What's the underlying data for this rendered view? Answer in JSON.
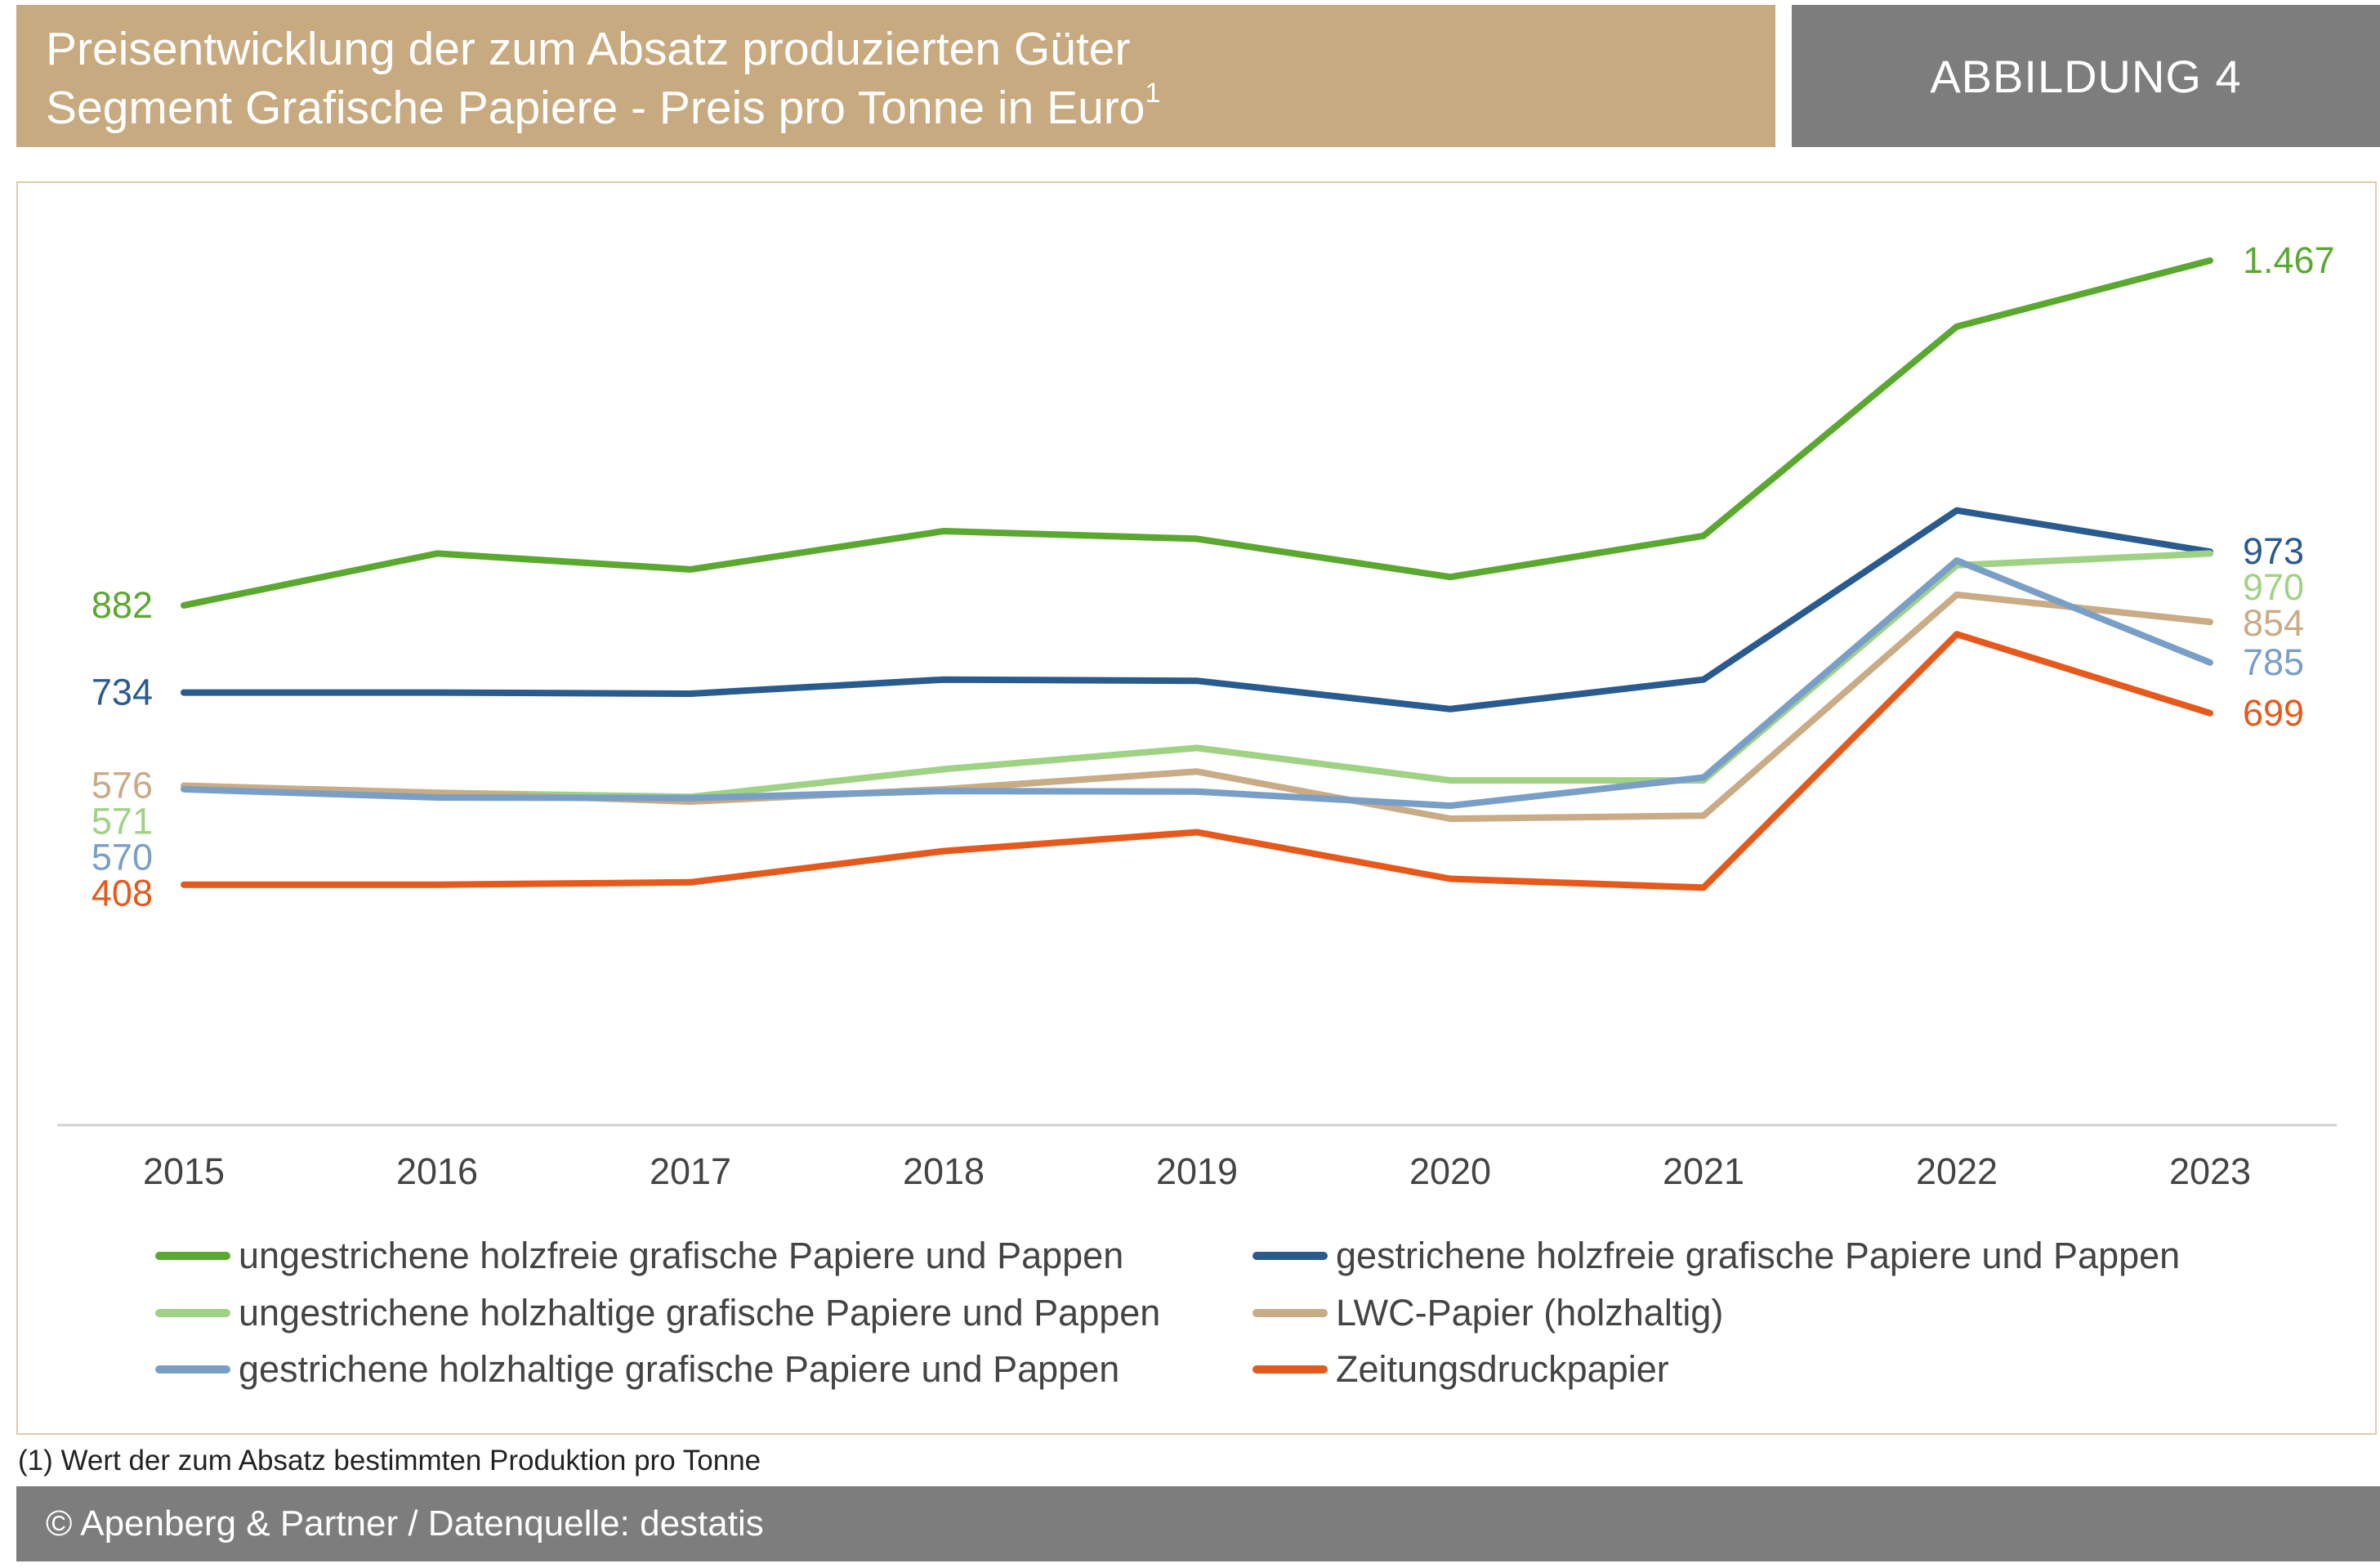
{
  "header": {
    "title_line1": "Preisentwicklung der zum Absatz produzierten Güter",
    "title_line2_bold": "Segment Grafische Papiere - ",
    "title_line2_light": "Preis pro Tonne in Euro",
    "title_sup": "1",
    "figure_label": "ABBILDUNG 4"
  },
  "footnote": "(1) Wert der zum Absatz bestimmten Produktion pro Tonne",
  "footer": "© Apenberg & Partner / Datenquelle: destatis",
  "chart_data": {
    "type": "line",
    "x": [
      "2015",
      "2016",
      "2017",
      "2018",
      "2019",
      "2020",
      "2021",
      "2022",
      "2023"
    ],
    "ylim": [
      0,
      1600
    ],
    "grid": false,
    "legend_position": "bottom",
    "series": [
      {
        "name": "ungestrichene holzfreie grafische Papiere und Pappen",
        "color": "#5ba830",
        "values": [
          882,
          970,
          943,
          1008,
          995,
          930,
          1000,
          1355,
          1467
        ],
        "start_label": "882",
        "end_label": "1.467"
      },
      {
        "name": "gestrichene holzfreie grafische Papiere und Pappen",
        "color": "#2a5b8e",
        "values": [
          734,
          734,
          732,
          756,
          754,
          706,
          756,
          1043,
          973
        ],
        "start_label": "734",
        "end_label": "973"
      },
      {
        "name": "ungestrichene holzhaltige grafische Papiere und Pappen",
        "color": "#9fd285",
        "values": [
          571,
          564,
          557,
          604,
          640,
          585,
          585,
          950,
          970
        ],
        "start_label": "571",
        "end_label": "970"
      },
      {
        "name": "LWC-Papier (holzhaltig)",
        "color": "#c9ab86",
        "values": [
          576,
          564,
          549,
          570,
          600,
          520,
          525,
          900,
          854
        ],
        "start_label": "576",
        "end_label": "854"
      },
      {
        "name": "gestrichene holzhaltige grafische Papiere und Pappen",
        "color": "#7a9fc6",
        "values": [
          570,
          556,
          555,
          567,
          566,
          542,
          590,
          958,
          785
        ],
        "start_label": "570",
        "end_label": "785"
      },
      {
        "name": "Zeitungsdruckpapier",
        "color": "#e55a1c",
        "values": [
          408,
          408,
          412,
          465,
          497,
          418,
          403,
          833,
          699
        ],
        "start_label": "408",
        "end_label": "699"
      }
    ]
  }
}
